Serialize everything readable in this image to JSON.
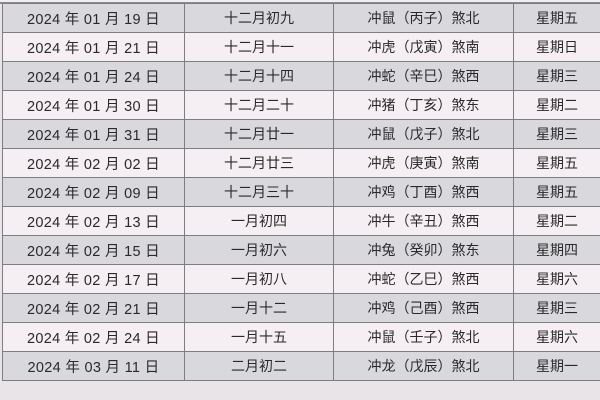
{
  "table": {
    "rows": [
      {
        "date": "2024 年 01 月 19 日",
        "lunar": "十二月初九",
        "clash": "冲鼠（丙子）煞北",
        "weekday": "星期五"
      },
      {
        "date": "2024 年 01 月 21 日",
        "lunar": "十二月十一",
        "clash": "冲虎（戊寅）煞南",
        "weekday": "星期日"
      },
      {
        "date": "2024 年 01 月 24 日",
        "lunar": "十二月十四",
        "clash": "冲蛇（辛巳）煞西",
        "weekday": "星期三"
      },
      {
        "date": "2024 年 01 月 30 日",
        "lunar": "十二月二十",
        "clash": "冲猪（丁亥）煞东",
        "weekday": "星期二"
      },
      {
        "date": "2024 年 01 月 31 日",
        "lunar": "十二月廿一",
        "clash": "冲鼠（戊子）煞北",
        "weekday": "星期三"
      },
      {
        "date": "2024 年 02 月 02 日",
        "lunar": "十二月廿三",
        "clash": "冲虎（庚寅）煞南",
        "weekday": "星期五"
      },
      {
        "date": "2024 年 02 月 09 日",
        "lunar": "十二月三十",
        "clash": "冲鸡（丁酉）煞西",
        "weekday": "星期五"
      },
      {
        "date": "2024 年 02 月 13 日",
        "lunar": "一月初四",
        "clash": "冲牛（辛丑）煞西",
        "weekday": "星期二"
      },
      {
        "date": "2024 年 02 月 15 日",
        "lunar": "一月初六",
        "clash": "冲兔（癸卯）煞东",
        "weekday": "星期四"
      },
      {
        "date": "2024 年 02 月 17 日",
        "lunar": "一月初八",
        "clash": "冲蛇（乙巳）煞西",
        "weekday": "星期六"
      },
      {
        "date": "2024 年 02 月 21 日",
        "lunar": "一月十二",
        "clash": "冲鸡（己酉）煞西",
        "weekday": "星期三"
      },
      {
        "date": "2024 年 02 月 24 日",
        "lunar": "一月十五",
        "clash": "冲鼠（壬子）煞北",
        "weekday": "星期六"
      },
      {
        "date": "2024 年 03 月 11 日",
        "lunar": "二月初二",
        "clash": "冲龙（戊辰）煞北",
        "weekday": "星期一"
      }
    ]
  }
}
